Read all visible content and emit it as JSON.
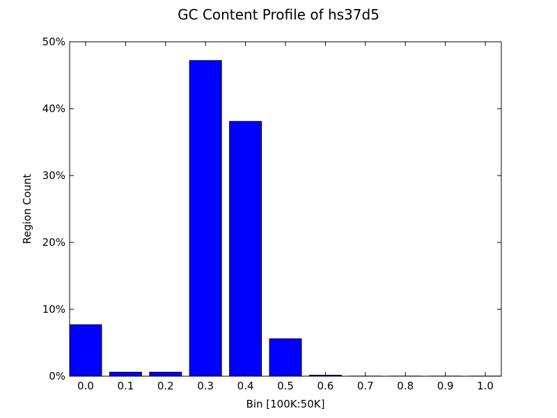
{
  "chart_data": {
    "type": "bar",
    "title": "GC Content Profile of hs37d5",
    "xlabel": "Bin [100K:50K]",
    "ylabel": "Region Count",
    "categories": [
      "0.0",
      "0.1",
      "0.2",
      "0.3",
      "0.4",
      "0.5",
      "0.6",
      "0.7",
      "0.8",
      "0.9",
      "1.0"
    ],
    "values": [
      7.7,
      0.6,
      0.6,
      47.2,
      38.1,
      5.6,
      0.15,
      0.02,
      0.02,
      0.02,
      0.02
    ],
    "ylim": [
      0,
      50
    ],
    "yticks": [
      0,
      10,
      20,
      30,
      40,
      50
    ],
    "ytick_labels": [
      "0%",
      "10%",
      "20%",
      "30%",
      "40%",
      "50%"
    ],
    "grid": false,
    "legend": "none",
    "colors": {
      "bar_fill": "#0000ff",
      "bar_edge": "#000000",
      "axes": "#000000"
    }
  }
}
